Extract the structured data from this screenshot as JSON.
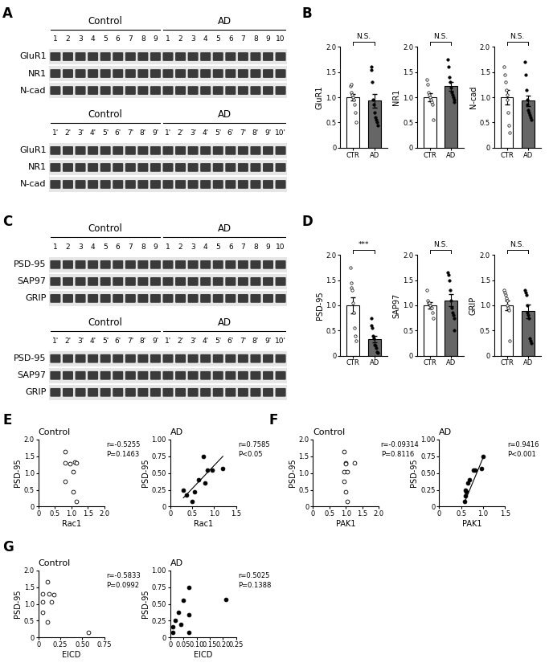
{
  "blots": [
    {
      "panel": "A",
      "groups": [
        "Control",
        "AD"
      ],
      "blocks": [
        {
          "lanes": [
            [
              "1",
              "2",
              "3",
              "4",
              "5",
              "6",
              "7",
              "8",
              "9"
            ],
            [
              "1",
              "2",
              "3",
              "4",
              "5",
              "6",
              "7",
              "8",
              "9",
              "10"
            ]
          ],
          "rows": [
            "GluR1",
            "NR1",
            "N-cad"
          ]
        },
        {
          "lanes": [
            [
              "1'",
              "2'",
              "3'",
              "4'",
              "5'",
              "6'",
              "7'",
              "8'",
              "9'"
            ],
            [
              "1'",
              "2'",
              "3'",
              "4'",
              "5'",
              "6'",
              "7'",
              "8'",
              "9'",
              "10'"
            ]
          ],
          "rows": [
            "GluR1",
            "NR1",
            "N-cad"
          ]
        }
      ]
    },
    {
      "panel": "C",
      "groups": [
        "Control",
        "AD"
      ],
      "blocks": [
        {
          "lanes": [
            [
              "1",
              "2",
              "3",
              "4",
              "5",
              "6",
              "7",
              "8",
              "9"
            ],
            [
              "1",
              "2",
              "3",
              "4",
              "5",
              "6",
              "7",
              "8",
              "9",
              "10"
            ]
          ],
          "rows": [
            "PSD-95",
            "SAP97",
            "GRIP"
          ]
        },
        {
          "lanes": [
            [
              "1'",
              "2'",
              "3'",
              "4'",
              "5'",
              "6'",
              "7'",
              "8'",
              "9'"
            ],
            [
              "1'",
              "2'",
              "3'",
              "4'",
              "5'",
              "6'",
              "7'",
              "8'",
              "9'",
              "10'"
            ]
          ],
          "rows": [
            "PSD-95",
            "SAP97",
            "GRIP"
          ]
        }
      ]
    }
  ],
  "chart_data": [
    {
      "type": "bar",
      "panel": "B",
      "ylabel": "GluR1",
      "annotation": "N.S.",
      "categories": [
        "CTR",
        "AD"
      ],
      "values": [
        1.0,
        0.93
      ],
      "errors": [
        0.07,
        0.14
      ],
      "colors": [
        "#ffffff",
        "#666666"
      ],
      "points": [
        [
          1.22,
          1.25,
          1.1,
          1.05,
          1.0,
          0.95,
          0.85,
          0.7,
          0.5
        ],
        [
          1.6,
          1.55,
          1.3,
          0.95,
          0.85,
          0.7,
          0.6,
          0.55,
          0.5,
          0.45
        ]
      ],
      "ylim": [
        0,
        2
      ],
      "yticks": [
        0,
        0.5,
        {
          "value": 1,
          "label": "1.0"
        },
        1.5,
        {
          "value": 2,
          "label": "2.0"
        }
      ]
    },
    {
      "type": "bar",
      "ylabel": "NR1",
      "annotation": "N.S.",
      "categories": [
        "CTR",
        "AD"
      ],
      "values": [
        1.0,
        1.22
      ],
      "errors": [
        0.08,
        0.09
      ],
      "colors": [
        "#ffffff",
        "#666666"
      ],
      "points": [
        [
          1.35,
          1.25,
          1.1,
          1.05,
          1.0,
          0.95,
          0.9,
          0.85,
          0.55
        ],
        [
          1.75,
          1.6,
          1.4,
          1.3,
          1.2,
          1.1,
          1.05,
          1.0,
          0.95,
          0.9
        ]
      ],
      "ylim": [
        0,
        2
      ],
      "yticks": [
        0,
        0.5,
        {
          "value": 1,
          "label": "1.0"
        },
        1.5,
        {
          "value": 2,
          "label": "2.0"
        }
      ]
    },
    {
      "type": "bar",
      "ylabel": "N-cad",
      "annotation": "N.S.",
      "categories": [
        "CTR",
        "AD"
      ],
      "values": [
        1.0,
        0.93
      ],
      "errors": [
        0.14,
        0.11
      ],
      "colors": [
        "#ffffff",
        "#666666"
      ],
      "points": [
        [
          1.6,
          1.45,
          1.3,
          1.15,
          1.05,
          0.95,
          0.7,
          0.45,
          0.3
        ],
        [
          1.7,
          1.45,
          1.15,
          0.95,
          0.85,
          0.75,
          0.7,
          0.65,
          0.6,
          0.55
        ]
      ],
      "ylim": [
        0,
        2
      ],
      "yticks": [
        0,
        0.5,
        {
          "value": 1,
          "label": "1.0"
        },
        1.5,
        {
          "value": 2,
          "label": "2.0"
        }
      ]
    },
    {
      "type": "bar",
      "panel": "D",
      "ylabel": "PSD-95",
      "annotation": "***",
      "categories": [
        "CTR",
        "AD"
      ],
      "values": [
        1.0,
        0.33
      ],
      "errors": [
        0.16,
        0.07
      ],
      "colors": [
        "#ffffff",
        "#666666"
      ],
      "points": [
        [
          1.75,
          1.45,
          1.35,
          1.3,
          1.05,
          0.85,
          0.55,
          0.4,
          0.3
        ],
        [
          0.75,
          0.6,
          0.55,
          0.4,
          0.35,
          0.22,
          0.2,
          0.15,
          0.07,
          0.05
        ]
      ],
      "ylim": [
        0,
        2
      ],
      "yticks": [
        0,
        0.5,
        {
          "value": 1,
          "label": "1.0"
        },
        1.5,
        {
          "value": 2,
          "label": "2.0"
        }
      ]
    },
    {
      "type": "bar",
      "ylabel": "SAP97",
      "annotation": "N.S.",
      "categories": [
        "CTR",
        "AD"
      ],
      "values": [
        1.0,
        1.1
      ],
      "errors": [
        0.07,
        0.12
      ],
      "colors": [
        "#ffffff",
        "#666666"
      ],
      "points": [
        [
          1.3,
          1.1,
          1.05,
          1.05,
          1.0,
          0.95,
          0.95,
          0.85,
          0.75
        ],
        [
          1.65,
          1.6,
          1.5,
          1.3,
          1.1,
          0.95,
          0.85,
          0.8,
          0.75,
          0.5
        ]
      ],
      "ylim": [
        0,
        2
      ],
      "yticks": [
        0,
        0.5,
        {
          "value": 1,
          "label": "1.0"
        },
        1.5,
        {
          "value": 2,
          "label": "2.0"
        }
      ]
    },
    {
      "type": "bar",
      "ylabel": "GRIP",
      "annotation": "N.S.",
      "categories": [
        "CTR",
        "AD"
      ],
      "values": [
        1.0,
        0.88
      ],
      "errors": [
        0.1,
        0.13
      ],
      "colors": [
        "#ffffff",
        "#666666"
      ],
      "points": [
        [
          1.3,
          1.25,
          1.2,
          1.15,
          1.1,
          1.0,
          0.95,
          0.9,
          0.3
        ],
        [
          1.3,
          1.25,
          1.2,
          1.0,
          0.85,
          0.8,
          0.75,
          0.35,
          0.3,
          0.25
        ]
      ],
      "ylim": [
        0,
        2
      ],
      "yticks": [
        0,
        0.5,
        {
          "value": 1,
          "label": "1.0"
        },
        1.5,
        {
          "value": 2,
          "label": "2.0"
        }
      ]
    },
    {
      "type": "scatter",
      "panel": "E",
      "title": "Control",
      "xlabel": "Rac1",
      "ylabel": "PSD-95",
      "annotations": [
        "r=-0.5255",
        "P=0.1463"
      ],
      "xlim": [
        0,
        2
      ],
      "xticks": [
        0,
        0.5,
        {
          "value": 1,
          "label": "1.0"
        },
        1.5,
        {
          "value": 2,
          "label": "2.0"
        }
      ],
      "ylim": [
        0,
        2
      ],
      "yticks": [
        0,
        0.5,
        {
          "value": 1,
          "label": "1.0"
        },
        1.5,
        {
          "value": 2,
          "label": "2.0"
        }
      ],
      "series": [
        {
          "type": "scatter",
          "marker": "circle",
          "color": "#ffffff",
          "x": [
            0.8,
            0.8,
            0.8,
            0.95,
            1.05,
            1.1,
            1.15,
            1.05,
            1.15
          ],
          "values": [
            1.65,
            1.3,
            0.75,
            1.28,
            1.05,
            1.32,
            1.3,
            0.45,
            0.15
          ]
        }
      ]
    },
    {
      "type": "scatter",
      "title": "AD",
      "xlabel": "Rac1",
      "ylabel": "PSD-95",
      "annotations": [
        "r=0.7585",
        "P<0.05"
      ],
      "xlim": [
        0,
        1.5
      ],
      "xticks": [
        0,
        0.5,
        {
          "value": 1,
          "label": "1.0"
        },
        1.5
      ],
      "ylim": [
        0,
        1
      ],
      "yticks": [
        0,
        0.25,
        {
          "value": 0.5,
          "label": "0.50"
        },
        0.75,
        {
          "value": 1,
          "label": "1.00"
        }
      ],
      "series": [
        {
          "type": "scatter",
          "marker": "circle",
          "color": "#000000",
          "x": [
            0.3,
            0.38,
            0.5,
            0.55,
            0.65,
            0.75,
            0.8,
            0.85,
            0.95,
            1.2
          ],
          "values": [
            0.25,
            0.17,
            0.08,
            0.22,
            0.4,
            0.75,
            0.35,
            0.55,
            0.55,
            0.57
          ]
        },
        {
          "type": "line",
          "line_style": "solid",
          "color": "#000000",
          "x": [
            0.3,
            1.2
          ],
          "values": [
            0.13,
            0.75
          ]
        }
      ]
    },
    {
      "type": "scatter",
      "panel": "F",
      "title": "Control",
      "xlabel": "PAK1",
      "ylabel": "PSD-95",
      "annotations": [
        "r=-0.09314",
        "P=0.8116"
      ],
      "xlim": [
        0,
        2
      ],
      "xticks": [
        0,
        0.5,
        {
          "value": 1,
          "label": "1.0"
        },
        1.5,
        {
          "value": 2,
          "label": "2.0"
        }
      ],
      "ylim": [
        0,
        2
      ],
      "yticks": [
        0,
        0.5,
        {
          "value": 1,
          "label": "1.0"
        },
        1.5,
        {
          "value": 2,
          "label": "2.0"
        }
      ],
      "series": [
        {
          "type": "scatter",
          "marker": "circle",
          "color": "#ffffff",
          "x": [
            0.95,
            1.0,
            1.0,
            0.95,
            1.05,
            0.95,
            1.0,
            1.05,
            1.25
          ],
          "values": [
            1.65,
            1.3,
            1.28,
            1.05,
            1.05,
            0.75,
            0.45,
            0.15,
            1.3
          ]
        }
      ]
    },
    {
      "type": "scatter",
      "title": "AD",
      "xlabel": "PAK1",
      "ylabel": "PSD-95",
      "annotations": [
        "r=0.9416",
        "P<0.001"
      ],
      "xlim": [
        0,
        1.5
      ],
      "xticks": [
        0,
        0.5,
        {
          "value": 1,
          "label": "1.0"
        },
        1.5
      ],
      "ylim": [
        0,
        1
      ],
      "yticks": [
        0,
        0.25,
        {
          "value": 0.5,
          "label": "0.50"
        },
        0.75,
        {
          "value": 1,
          "label": "1.00"
        }
      ],
      "series": [
        {
          "type": "scatter",
          "marker": "circle",
          "color": "#000000",
          "x": [
            0.58,
            0.6,
            0.62,
            0.6,
            0.65,
            0.68,
            0.78,
            0.82,
            0.97,
            1.0
          ],
          "values": [
            0.08,
            0.16,
            0.22,
            0.25,
            0.35,
            0.4,
            0.55,
            0.55,
            0.57,
            0.75
          ]
        },
        {
          "type": "line",
          "line_style": "solid",
          "color": "#000000",
          "x": [
            0.58,
            1.0
          ],
          "values": [
            0.07,
            0.73
          ]
        }
      ]
    },
    {
      "type": "scatter",
      "panel": "G",
      "title": "Control",
      "xlabel": "EICD",
      "ylabel": "PSD-95",
      "annotations": [
        "r=-0.5833",
        "P=0.0992"
      ],
      "xlim": [
        0,
        0.75
      ],
      "xticks": [
        0,
        0.25,
        {
          "value": 0.5,
          "label": "0.50"
        },
        0.75
      ],
      "ylim": [
        0,
        2
      ],
      "yticks": [
        0,
        0.5,
        {
          "value": 1,
          "label": "1.0"
        },
        1.5,
        {
          "value": 2,
          "label": "2.0"
        }
      ],
      "series": [
        {
          "type": "scatter",
          "marker": "circle",
          "color": "#ffffff",
          "x": [
            0.05,
            0.05,
            0.05,
            0.1,
            0.1,
            0.15,
            0.18,
            0.57,
            0.12
          ],
          "values": [
            1.3,
            1.05,
            0.75,
            1.65,
            0.45,
            1.05,
            1.28,
            0.15,
            1.3
          ]
        }
      ]
    },
    {
      "type": "scatter",
      "title": "AD",
      "xlabel": "EICD",
      "ylabel": "PSD-95",
      "annotations": [
        "r=0.5025",
        "P=0.1388"
      ],
      "xlim": [
        0,
        0.25
      ],
      "xticks": [
        0,
        0.05,
        {
          "value": 0.1,
          "label": "0.10"
        },
        0.15,
        {
          "value": 0.2,
          "label": "0.20"
        },
        0.25
      ],
      "ylim": [
        0,
        1
      ],
      "yticks": [
        0,
        0.25,
        {
          "value": 0.5,
          "label": "0.50"
        },
        0.75,
        {
          "value": 1,
          "label": "1.00"
        }
      ],
      "series": [
        {
          "type": "scatter",
          "marker": "circle",
          "color": "#000000",
          "x": [
            0.01,
            0.01,
            0.02,
            0.03,
            0.04,
            0.05,
            0.07,
            0.07,
            0.07,
            0.21
          ],
          "values": [
            0.08,
            0.16,
            0.25,
            0.38,
            0.2,
            0.55,
            0.34,
            0.75,
            0.07,
            0.57
          ]
        }
      ]
    }
  ]
}
